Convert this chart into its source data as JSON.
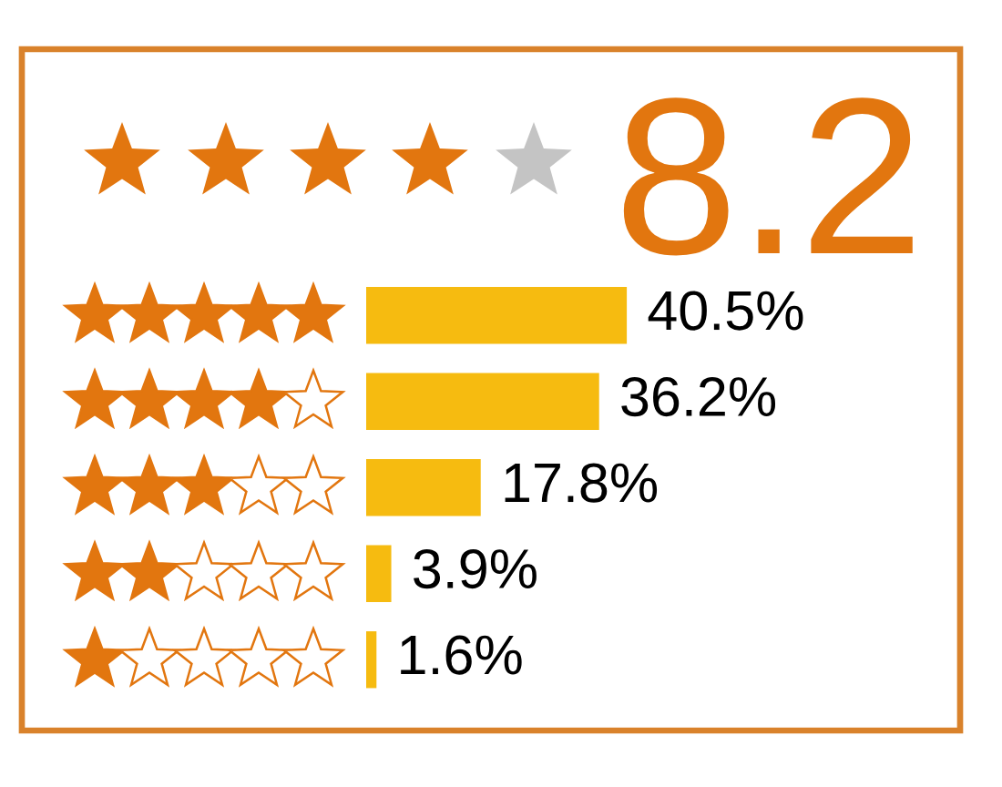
{
  "chart_data": {
    "type": "bar",
    "orientation": "horizontal",
    "title": "8.2",
    "categories": [
      null,
      null,
      null,
      null,
      null
    ],
    "values": [
      40.5,
      36.2,
      17.8,
      3.9,
      1.6
    ],
    "value_labels": [
      "40.5%",
      "36.2%",
      "17.8%",
      "3.9%",
      "1.6%"
    ],
    "color": "#f6bb10",
    "tick_labels": false
  }
}
